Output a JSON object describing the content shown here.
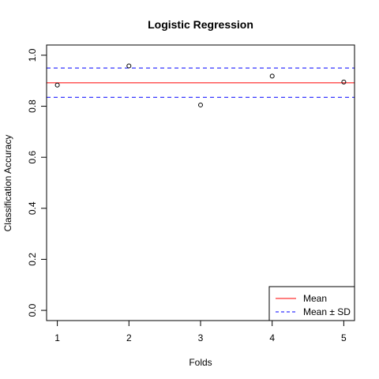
{
  "chart_data": {
    "type": "scatter",
    "title": "Logistic Regression",
    "xlabel": "Folds",
    "ylabel": "Classification Accuracy",
    "x": [
      1,
      2,
      3,
      4,
      5
    ],
    "y": [
      0.883,
      0.958,
      0.805,
      0.918,
      0.895
    ],
    "xlim": [
      0.85,
      5.15
    ],
    "ylim": [
      -0.04,
      1.04
    ],
    "xticks": [
      "1",
      "2",
      "3",
      "4",
      "5"
    ],
    "yticks": [
      "0.0",
      "0.2",
      "0.4",
      "0.6",
      "0.8",
      "1.0"
    ],
    "mean": 0.892,
    "mean_plus_sd": 0.95,
    "mean_minus_sd": 0.835,
    "legend": {
      "position": "bottom-right",
      "entries": [
        {
          "label": "Mean",
          "color": "#ff0000",
          "style": "solid"
        },
        {
          "label": "Mean ± SD",
          "color": "#0000ff",
          "style": "dashed"
        }
      ]
    },
    "grid": false
  }
}
